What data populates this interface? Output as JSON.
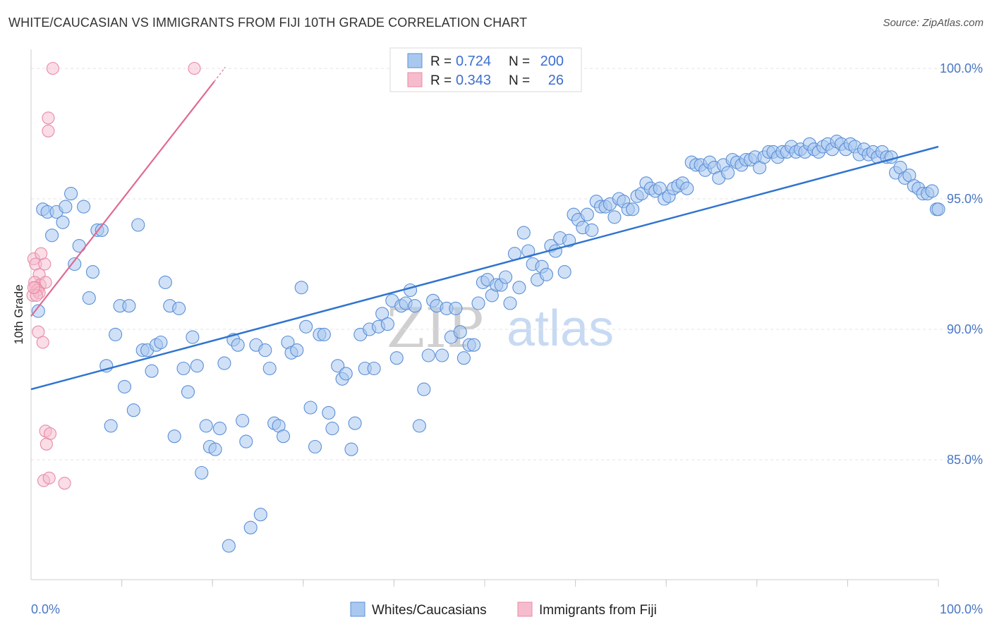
{
  "title": "WHITE/CAUCASIAN VS IMMIGRANTS FROM FIJI 10TH GRADE CORRELATION CHART",
  "source": "Source: ZipAtlas.com",
  "watermark": {
    "zip": "ZIP",
    "atlas": "atlas"
  },
  "legend_box": {
    "rows": [
      {
        "r_label": "R =",
        "r_value": "0.724",
        "n_label": "N =",
        "n_value": "200"
      },
      {
        "r_label": "R =",
        "r_value": "0.343",
        "n_label": "N =",
        "n_value": "26"
      }
    ]
  },
  "bottom_legend": [
    {
      "label": "Whites/Caucasians"
    },
    {
      "label": "Immigrants from Fiji"
    }
  ],
  "colors": {
    "blue_fill": "#a9c8f0",
    "blue_stroke": "#5b8fd6",
    "blue_line": "#2f74d0",
    "pink_fill": "#f6bccd",
    "pink_stroke": "#e88aa5",
    "pink_line": "#e06a90",
    "grid": "#e3e3e3",
    "axis": "#cccccc",
    "tick_text": "#4a77c4"
  },
  "chart_data": {
    "type": "scatter",
    "title": "WHITE/CAUCASIAN VS IMMIGRANTS FROM FIJI 10TH GRADE CORRELATION CHART",
    "xlabel": "",
    "ylabel": "10th Grade",
    "xlim": [
      0,
      100
    ],
    "ylim": [
      80.5,
      101
    ],
    "x_tick_labels": [
      {
        "value": 0,
        "label": "0.0%"
      },
      {
        "value": 100,
        "label": "100.0%"
      }
    ],
    "y_tick_labels": [
      {
        "value": 85,
        "label": "85.0%"
      },
      {
        "value": 90,
        "label": "90.0%"
      },
      {
        "value": 95,
        "label": "95.0%"
      },
      {
        "value": 100,
        "label": "100.0%"
      }
    ],
    "series": [
      {
        "name": "Whites/Caucasians",
        "color": "blue",
        "R": 0.724,
        "N": 200,
        "trendline": {
          "x": [
            0,
            100
          ],
          "y": [
            87.7,
            97.0
          ]
        },
        "points": [
          [
            0.8,
            90.7
          ],
          [
            1.3,
            94.6
          ],
          [
            1.8,
            94.5
          ],
          [
            2.3,
            93.6
          ],
          [
            2.8,
            94.5
          ],
          [
            3.5,
            94.1
          ],
          [
            3.8,
            94.7
          ],
          [
            4.4,
            95.2
          ],
          [
            4.8,
            92.5
          ],
          [
            5.3,
            93.2
          ],
          [
            5.8,
            94.7
          ],
          [
            6.4,
            91.2
          ],
          [
            6.8,
            92.2
          ],
          [
            7.3,
            93.8
          ],
          [
            7.8,
            93.8
          ],
          [
            8.3,
            88.6
          ],
          [
            8.8,
            86.3
          ],
          [
            9.3,
            89.8
          ],
          [
            9.8,
            90.9
          ],
          [
            10.3,
            87.8
          ],
          [
            10.8,
            90.9
          ],
          [
            11.3,
            86.9
          ],
          [
            11.8,
            94.0
          ],
          [
            12.3,
            89.2
          ],
          [
            12.8,
            89.2
          ],
          [
            13.3,
            88.4
          ],
          [
            13.8,
            89.4
          ],
          [
            14.3,
            89.5
          ],
          [
            14.8,
            91.8
          ],
          [
            15.3,
            90.9
          ],
          [
            15.8,
            85.9
          ],
          [
            16.3,
            90.8
          ],
          [
            16.8,
            88.5
          ],
          [
            17.3,
            87.6
          ],
          [
            17.8,
            89.7
          ],
          [
            18.3,
            88.6
          ],
          [
            18.8,
            84.5
          ],
          [
            19.3,
            86.3
          ],
          [
            19.7,
            85.5
          ],
          [
            20.3,
            85.4
          ],
          [
            20.8,
            86.2
          ],
          [
            21.3,
            88.7
          ],
          [
            21.8,
            81.7
          ],
          [
            22.3,
            89.6
          ],
          [
            22.8,
            89.4
          ],
          [
            23.3,
            86.5
          ],
          [
            23.7,
            85.7
          ],
          [
            24.2,
            82.4
          ],
          [
            24.8,
            89.4
          ],
          [
            25.3,
            82.9
          ],
          [
            25.8,
            89.2
          ],
          [
            26.3,
            88.5
          ],
          [
            26.8,
            86.4
          ],
          [
            27.3,
            86.3
          ],
          [
            27.8,
            85.9
          ],
          [
            28.3,
            89.5
          ],
          [
            28.7,
            89.1
          ],
          [
            29.3,
            89.2
          ],
          [
            29.8,
            91.6
          ],
          [
            30.3,
            90.1
          ],
          [
            30.8,
            87.0
          ],
          [
            31.3,
            85.5
          ],
          [
            31.8,
            89.8
          ],
          [
            32.3,
            89.8
          ],
          [
            32.8,
            86.8
          ],
          [
            33.2,
            86.2
          ],
          [
            33.8,
            88.6
          ],
          [
            34.3,
            88.1
          ],
          [
            34.7,
            88.3
          ],
          [
            35.3,
            85.4
          ],
          [
            35.7,
            86.4
          ],
          [
            36.3,
            89.8
          ],
          [
            36.8,
            88.5
          ],
          [
            37.3,
            90.0
          ],
          [
            37.8,
            88.5
          ],
          [
            38.3,
            90.1
          ],
          [
            38.7,
            90.6
          ],
          [
            39.3,
            90.2
          ],
          [
            39.8,
            91.1
          ],
          [
            40.3,
            88.9
          ],
          [
            40.8,
            90.9
          ],
          [
            41.3,
            91.0
          ],
          [
            41.8,
            91.5
          ],
          [
            42.3,
            90.9
          ],
          [
            42.8,
            86.3
          ],
          [
            43.3,
            87.7
          ],
          [
            43.8,
            89.0
          ],
          [
            44.3,
            91.1
          ],
          [
            44.7,
            90.9
          ],
          [
            45.3,
            89.0
          ],
          [
            45.8,
            90.8
          ],
          [
            46.3,
            89.7
          ],
          [
            46.8,
            90.8
          ],
          [
            47.3,
            89.9
          ],
          [
            47.7,
            88.9
          ],
          [
            48.3,
            89.4
          ],
          [
            48.8,
            89.4
          ],
          [
            49.3,
            91.0
          ],
          [
            49.8,
            91.8
          ],
          [
            50.3,
            91.9
          ],
          [
            50.8,
            91.3
          ],
          [
            51.3,
            91.7
          ],
          [
            51.8,
            91.7
          ],
          [
            52.3,
            92.0
          ],
          [
            52.8,
            91.0
          ],
          [
            53.3,
            92.9
          ],
          [
            53.8,
            91.6
          ],
          [
            54.3,
            93.7
          ],
          [
            54.8,
            93.0
          ],
          [
            55.3,
            92.5
          ],
          [
            55.8,
            91.9
          ],
          [
            56.3,
            92.4
          ],
          [
            56.8,
            92.1
          ],
          [
            57.3,
            93.2
          ],
          [
            57.8,
            93.0
          ],
          [
            58.3,
            93.5
          ],
          [
            58.8,
            92.2
          ],
          [
            59.3,
            93.4
          ],
          [
            59.8,
            94.4
          ],
          [
            60.3,
            94.2
          ],
          [
            60.8,
            93.9
          ],
          [
            61.3,
            94.4
          ],
          [
            61.8,
            93.8
          ],
          [
            62.3,
            94.9
          ],
          [
            62.8,
            94.7
          ],
          [
            63.3,
            94.7
          ],
          [
            63.8,
            94.8
          ],
          [
            64.3,
            94.3
          ],
          [
            64.8,
            95.0
          ],
          [
            65.3,
            94.9
          ],
          [
            65.8,
            94.6
          ],
          [
            66.3,
            94.6
          ],
          [
            66.8,
            95.1
          ],
          [
            67.3,
            95.2
          ],
          [
            67.8,
            95.6
          ],
          [
            68.3,
            95.4
          ],
          [
            68.8,
            95.3
          ],
          [
            69.3,
            95.4
          ],
          [
            69.8,
            95.0
          ],
          [
            70.3,
            95.1
          ],
          [
            70.8,
            95.4
          ],
          [
            71.3,
            95.5
          ],
          [
            71.8,
            95.6
          ],
          [
            72.3,
            95.4
          ],
          [
            72.8,
            96.4
          ],
          [
            73.3,
            96.3
          ],
          [
            73.8,
            96.3
          ],
          [
            74.3,
            96.1
          ],
          [
            74.8,
            96.4
          ],
          [
            75.3,
            96.2
          ],
          [
            75.8,
            95.8
          ],
          [
            76.3,
            96.3
          ],
          [
            76.8,
            96.0
          ],
          [
            77.3,
            96.5
          ],
          [
            77.8,
            96.4
          ],
          [
            78.3,
            96.3
          ],
          [
            78.8,
            96.5
          ],
          [
            79.3,
            96.5
          ],
          [
            79.8,
            96.6
          ],
          [
            80.3,
            96.2
          ],
          [
            80.8,
            96.6
          ],
          [
            81.3,
            96.8
          ],
          [
            81.8,
            96.8
          ],
          [
            82.3,
            96.6
          ],
          [
            82.8,
            96.8
          ],
          [
            83.3,
            96.8
          ],
          [
            83.8,
            97.0
          ],
          [
            84.3,
            96.8
          ],
          [
            84.8,
            96.9
          ],
          [
            85.3,
            96.8
          ],
          [
            85.8,
            97.1
          ],
          [
            86.3,
            96.9
          ],
          [
            86.8,
            96.8
          ],
          [
            87.3,
            97.0
          ],
          [
            87.8,
            97.1
          ],
          [
            88.3,
            96.9
          ],
          [
            88.8,
            97.2
          ],
          [
            89.3,
            97.1
          ],
          [
            89.8,
            96.9
          ],
          [
            90.3,
            97.1
          ],
          [
            90.8,
            97.0
          ],
          [
            91.3,
            96.7
          ],
          [
            91.8,
            96.9
          ],
          [
            92.3,
            96.7
          ],
          [
            92.8,
            96.8
          ],
          [
            93.3,
            96.6
          ],
          [
            93.8,
            96.8
          ],
          [
            94.3,
            96.6
          ],
          [
            94.8,
            96.6
          ],
          [
            95.3,
            96.0
          ],
          [
            95.8,
            96.2
          ],
          [
            96.3,
            95.8
          ],
          [
            96.8,
            95.9
          ],
          [
            97.3,
            95.5
          ],
          [
            97.8,
            95.4
          ],
          [
            98.3,
            95.2
          ],
          [
            98.8,
            95.2
          ],
          [
            99.3,
            95.3
          ],
          [
            99.8,
            94.6
          ],
          [
            100.0,
            94.6
          ]
        ]
      },
      {
        "name": "Immigrants from Fiji",
        "color": "pink",
        "R": 0.343,
        "N": 26,
        "trendline": {
          "x": [
            0,
            20.2
          ],
          "y": [
            90.5,
            99.5
          ]
        },
        "points": [
          [
            2.4,
            100.0
          ],
          [
            18.0,
            100.0
          ],
          [
            1.9,
            98.1
          ],
          [
            1.9,
            97.6
          ],
          [
            0.3,
            92.7
          ],
          [
            0.5,
            92.5
          ],
          [
            1.5,
            92.5
          ],
          [
            1.1,
            92.9
          ],
          [
            0.9,
            92.1
          ],
          [
            0.4,
            91.8
          ],
          [
            1.0,
            91.7
          ],
          [
            1.6,
            91.8
          ],
          [
            0.5,
            91.6
          ],
          [
            0.7,
            91.5
          ],
          [
            0.2,
            91.3
          ],
          [
            0.9,
            91.4
          ],
          [
            0.6,
            91.3
          ],
          [
            0.3,
            91.6
          ],
          [
            0.8,
            89.9
          ],
          [
            1.3,
            89.5
          ],
          [
            1.6,
            86.1
          ],
          [
            2.1,
            86.0
          ],
          [
            1.7,
            85.6
          ],
          [
            1.4,
            84.2
          ],
          [
            2.0,
            84.3
          ],
          [
            3.7,
            84.1
          ]
        ]
      }
    ]
  }
}
